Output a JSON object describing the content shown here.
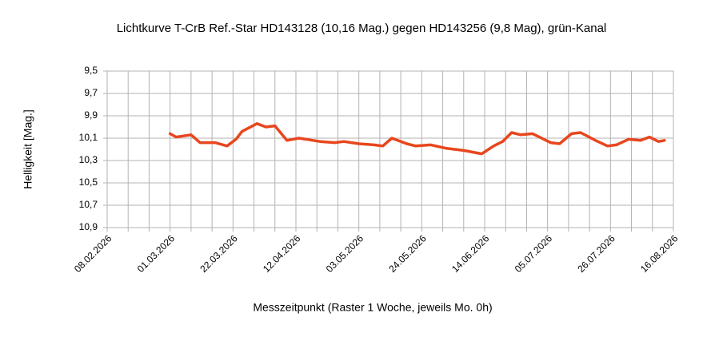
{
  "chart_data": {
    "type": "line",
    "title": "Lichtkurve T-CrB Ref.-Star HD143128 (10,16 Mag.) gegen HD143256 (9,8 Mag), grün-Kanal",
    "x_label": "Messzeitpunkt (Raster 1 Woche, jeweils Mo. 0h)",
    "y_label": "Helligkeit [Mag.]",
    "ylim": [
      9.5,
      10.9
    ],
    "y_inverted": true,
    "yticks": [
      {
        "value": 9.5,
        "label": "9,5"
      },
      {
        "value": 9.7,
        "label": "9,7"
      },
      {
        "value": 9.9,
        "label": "9,9"
      },
      {
        "value": 10.1,
        "label": "10,1"
      },
      {
        "value": 10.3,
        "label": "10,3"
      },
      {
        "value": 10.5,
        "label": "10,5"
      },
      {
        "value": 10.7,
        "label": "10,7"
      },
      {
        "value": 10.9,
        "label": "10,9"
      }
    ],
    "xlim": [
      "08.02.2026",
      "16.08.2026"
    ],
    "xticks": [
      "08.02.2026",
      "01.03.2026",
      "22.03.2026",
      "12.04.2026",
      "03.05.2026",
      "24.05.2026",
      "14.06.2026",
      "05.07.2026",
      "26.07.2026",
      "16.08.2026"
    ],
    "xgrid": [
      "08.02.2026",
      "15.02.2026",
      "22.02.2026",
      "01.03.2026",
      "08.03.2026",
      "15.03.2026",
      "22.03.2026",
      "29.03.2026",
      "05.04.2026",
      "12.04.2026",
      "19.04.2026",
      "26.04.2026",
      "03.05.2026",
      "10.05.2026",
      "17.05.2026",
      "24.05.2026",
      "31.05.2026",
      "07.06.2026",
      "14.06.2026",
      "21.06.2026",
      "28.06.2026",
      "05.07.2026",
      "12.07.2026",
      "19.07.2026",
      "26.07.2026",
      "02.08.2026",
      "09.08.2026",
      "16.08.2026"
    ],
    "grid": true,
    "series": [
      {
        "color": "#e8461e",
        "x": [
          "01.03.2026",
          "03.03.2026",
          "08.03.2026",
          "11.03.2026",
          "16.03.2026",
          "20.03.2026",
          "23.03.2026",
          "25.03.2026",
          "30.03.2026",
          "02.04.2026",
          "05.04.2026",
          "09.04.2026",
          "13.04.2026",
          "20.04.2026",
          "25.04.2026",
          "28.04.2026",
          "03.05.2026",
          "08.05.2026",
          "11.05.2026",
          "14.05.2026",
          "19.05.2026",
          "22.05.2026",
          "27.05.2026",
          "01.06.2026",
          "07.06.2026",
          "13.06.2026",
          "17.06.2026",
          "20.06.2026",
          "23.06.2026",
          "26.06.2026",
          "30.06.2026",
          "06.07.2026",
          "09.07.2026",
          "13.07.2026",
          "16.07.2026",
          "21.07.2026",
          "25.07.2026",
          "28.07.2026",
          "01.08.2026",
          "05.08.2026",
          "08.08.2026",
          "11.08.2026",
          "13.08.2026"
        ],
        "values": [
          10.06,
          10.09,
          10.07,
          10.14,
          10.14,
          10.17,
          10.11,
          10.04,
          9.97,
          10.0,
          9.99,
          10.12,
          10.1,
          10.13,
          10.14,
          10.13,
          10.15,
          10.16,
          10.17,
          10.1,
          10.15,
          10.17,
          10.16,
          10.19,
          10.21,
          10.24,
          10.17,
          10.13,
          10.05,
          10.07,
          10.06,
          10.14,
          10.15,
          10.06,
          10.05,
          10.12,
          10.17,
          10.16,
          10.11,
          10.12,
          10.09,
          10.13,
          10.12
        ]
      }
    ]
  }
}
